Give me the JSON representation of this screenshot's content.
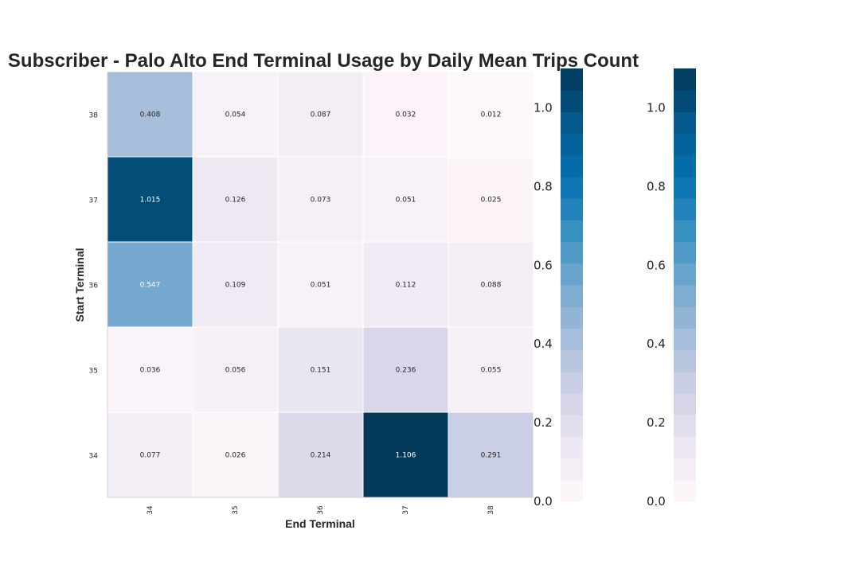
{
  "chart_data": {
    "type": "heatmap",
    "title": "Subscriber - Palo Alto End Terminal Usage by Daily Mean Trips Count",
    "xlabel": "End Terminal",
    "ylabel": "Start Terminal",
    "x_categories": [
      "34",
      "35",
      "36",
      "37",
      "38"
    ],
    "y_categories": [
      "38",
      "37",
      "36",
      "35",
      "34"
    ],
    "values": [
      [
        "0.408",
        "0.054",
        "0.087",
        "0.032",
        "0.012"
      ],
      [
        "1.015",
        "0.126",
        "0.073",
        "0.051",
        "0.025"
      ],
      [
        "0.547",
        "0.109",
        "0.051",
        "0.112",
        "0.088"
      ],
      [
        "0.036",
        "0.056",
        "0.151",
        "0.236",
        "0.055"
      ],
      [
        "0.077",
        "0.026",
        "0.214",
        "1.106",
        "0.291"
      ]
    ],
    "colorscale": "PuBu",
    "vmin": 0.0,
    "vmax": 1.1,
    "colorbar_levels": 20,
    "colorbars": [
      {
        "ticks": [
          "0.0",
          "0.2",
          "0.4",
          "0.6",
          "0.8",
          "1.0"
        ]
      },
      {
        "ticks": [
          "0.0",
          "0.2",
          "0.4",
          "0.6",
          "0.8",
          "1.0"
        ]
      }
    ]
  }
}
